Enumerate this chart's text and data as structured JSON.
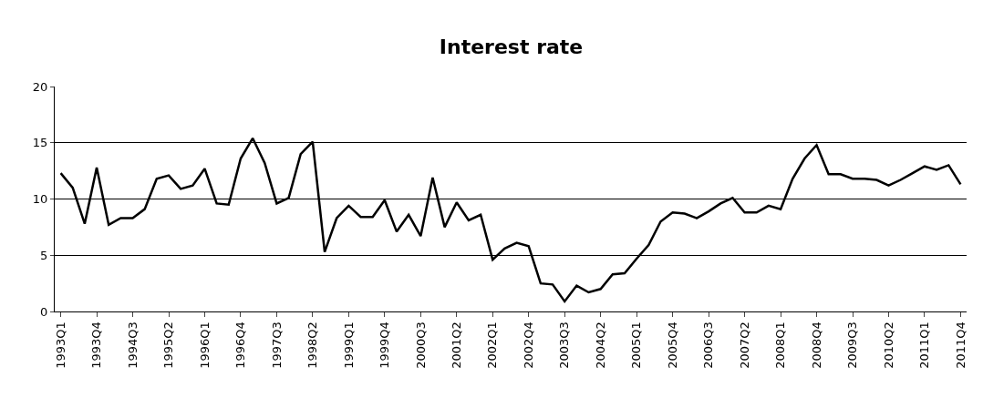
{
  "chart_data": {
    "type": "line",
    "title": "Interest rate",
    "categories": [
      "1993Q1",
      null,
      null,
      "1993Q4",
      null,
      null,
      "1994Q3",
      null,
      null,
      "1995Q2",
      null,
      null,
      "1996Q1",
      null,
      null,
      "1996Q4",
      null,
      null,
      "1997Q3",
      null,
      null,
      "1998Q2",
      null,
      null,
      "1999Q1",
      null,
      null,
      "1999Q4",
      null,
      null,
      "2000Q3",
      null,
      null,
      "2001Q2",
      null,
      null,
      "2002Q1",
      null,
      null,
      "2002Q4",
      null,
      null,
      "2003Q3",
      null,
      null,
      "2004Q2",
      null,
      null,
      "2005Q1",
      null,
      null,
      "2005Q4",
      null,
      null,
      "2006Q3",
      null,
      null,
      "2007Q2",
      null,
      null,
      "2008Q1",
      null,
      null,
      "2008Q4",
      null,
      null,
      "2009Q3",
      null,
      null,
      "2010Q2",
      null,
      null,
      "2011Q1",
      null,
      null,
      "2011Q4"
    ],
    "series": [
      {
        "color": "#000000",
        "values": [
          12.3,
          11.0,
          7.8,
          12.8,
          7.7,
          8.3,
          8.3,
          9.1,
          11.8,
          12.1,
          10.9,
          11.2,
          12.7,
          9.6,
          9.5,
          13.6,
          15.4,
          13.2,
          9.6,
          10.1,
          14.0,
          15.1,
          5.3,
          8.3,
          9.4,
          8.4,
          8.4,
          9.9,
          7.1,
          8.6,
          6.7,
          11.9,
          7.5,
          9.7,
          8.1,
          8.6,
          4.6,
          5.6,
          6.1,
          5.8,
          2.5,
          2.4,
          0.9,
          2.3,
          1.7,
          2.0,
          3.3,
          3.4,
          4.7,
          5.9,
          8.0,
          8.8,
          8.7,
          8.3,
          8.9,
          9.6,
          10.1,
          8.8,
          8.8,
          9.4,
          9.1,
          11.8,
          13.6,
          14.8,
          12.2,
          12.2,
          11.8,
          11.8,
          11.7,
          11.2,
          11.7,
          12.3,
          12.9,
          12.6,
          13.0,
          11.3
        ]
      }
    ],
    "ylim": [
      0,
      20
    ],
    "yticks": [
      0,
      5,
      10,
      15,
      20
    ],
    "grid": "y",
    "marker": "none",
    "line_style": "solid"
  }
}
